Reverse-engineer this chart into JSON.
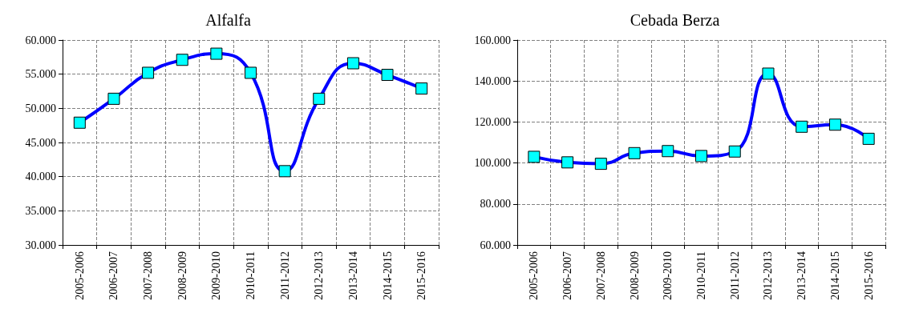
{
  "chart_data": [
    {
      "type": "line",
      "title": "Alfalfa",
      "categories": [
        "2005-2006",
        "2006-2007",
        "2007-2008",
        "2008-2009",
        "2009-2010",
        "2010-2011",
        "2011-2012",
        "2012-2013",
        "2013-2014",
        "2014-2015",
        "2015-2016"
      ],
      "series": [
        {
          "color": "#0000ff",
          "values": [
            47900,
            51400,
            55200,
            57100,
            58000,
            55200,
            40800,
            51400,
            56600,
            54900,
            52900
          ]
        }
      ],
      "ylim": [
        30000,
        60000
      ],
      "yticks": [
        {
          "value": 30000,
          "label": "30.000"
        },
        {
          "value": 35000,
          "label": "35.000"
        },
        {
          "value": 40000,
          "label": "40.000"
        },
        {
          "value": 45000,
          "label": "45.000"
        },
        {
          "value": 50000,
          "label": "50.000"
        },
        {
          "value": 55000,
          "label": "55.000"
        },
        {
          "value": 60000,
          "label": "60.000"
        }
      ],
      "grid": true,
      "marker": "square"
    },
    {
      "type": "line",
      "title": "Cebada Berza",
      "categories": [
        "2005-2006",
        "2006-2007",
        "2007-2008",
        "2008-2009",
        "2009-2010",
        "2010-2011",
        "2011-2012",
        "2012-2013",
        "2013-2014",
        "2014-2015",
        "2015-2016"
      ],
      "series": [
        {
          "color": "#0000ff",
          "values": [
            103000,
            100300,
            99600,
            104800,
            105800,
            103400,
            105600,
            143600,
            117700,
            118700,
            111800
          ]
        }
      ],
      "ylim": [
        60000,
        160000
      ],
      "yticks": [
        {
          "value": 60000,
          "label": "60.000"
        },
        {
          "value": 80000,
          "label": "80.000"
        },
        {
          "value": 100000,
          "label": "100.000"
        },
        {
          "value": 120000,
          "label": "120.000"
        },
        {
          "value": 140000,
          "label": "140.000"
        },
        {
          "value": 160000,
          "label": "160.000"
        }
      ],
      "grid": true,
      "marker": "square"
    }
  ]
}
